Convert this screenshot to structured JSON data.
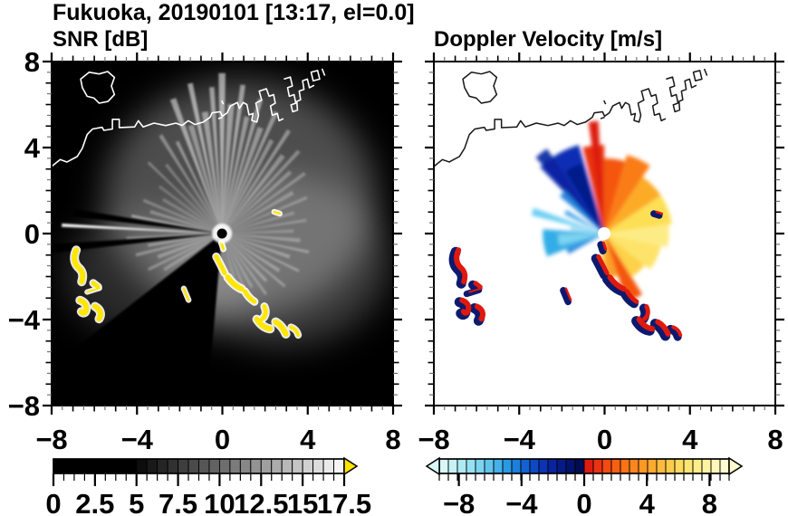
{
  "header": {
    "title": "Fukuoka, 20190101 [13:17, el=0.0]"
  },
  "chart_data": {
    "type": "heatmap",
    "subtype": "radar-ppi-pair",
    "site": "Fukuoka",
    "date": "20190101",
    "time": "13:17",
    "elevation": "0.0",
    "panels": [
      {
        "title": "SNR [dB]",
        "variable": "SNR",
        "units": "dB",
        "bg": "#000000",
        "xlim": [
          -8,
          8
        ],
        "ylim": [
          -8,
          8
        ],
        "major_tick_step": 4,
        "minor_tick_step": 0.5,
        "x_ticks": [
          {
            "v": -8,
            "label": "−8"
          },
          {
            "v": -4,
            "label": "−4"
          },
          {
            "v": 0,
            "label": "0"
          },
          {
            "v": 4,
            "label": "4"
          },
          {
            "v": 8,
            "label": "8"
          }
        ],
        "y_ticks": [
          {
            "v": 8,
            "label": "8"
          },
          {
            "v": 4,
            "label": "4"
          },
          {
            "v": 0,
            "label": "0"
          },
          {
            "v": -4,
            "label": "−4"
          },
          {
            "v": -8,
            "label": "−8"
          }
        ],
        "colorbar": {
          "vmin": 0,
          "vmax": 17.5,
          "arrow_right": "#ffe400",
          "ticks": [
            {
              "v": 0,
              "label": "0"
            },
            {
              "v": 2.5,
              "label": "2.5"
            },
            {
              "v": 5,
              "label": "5"
            },
            {
              "v": 7.5,
              "label": "7.5"
            },
            {
              "v": 10,
              "label": "10"
            },
            {
              "v": 12.5,
              "label": "12.5"
            },
            {
              "v": 15,
              "label": "15"
            },
            {
              "v": 17.5,
              "label": "17.5"
            }
          ],
          "cells": [
            "#000000",
            "#000000",
            "#000000",
            "#000000",
            "#000000",
            "#000000",
            "#000000",
            "#000000",
            "#0d0d0d",
            "#191919",
            "#252525",
            "#313131",
            "#3e3e3e",
            "#4a4a4a",
            "#565656",
            "#626262",
            "#6e6e6e",
            "#7b7b7b",
            "#878787",
            "#939393",
            "#9f9f9f",
            "#ababab",
            "#b8b8b8",
            "#c4c4c4",
            "#d0d0d0",
            "#dcdcdc",
            "#e9e9e9",
            "#f5f5f5"
          ]
        }
      },
      {
        "title": "Doppler Velocity [m/s]",
        "variable": "Doppler Velocity",
        "units": "m/s",
        "bg": "#ffffff",
        "xlim": [
          -8,
          8
        ],
        "ylim": [
          -8,
          8
        ],
        "major_tick_step": 4,
        "minor_tick_step": 0.5,
        "x_ticks": [
          {
            "v": -8,
            "label": "−8"
          },
          {
            "v": -4,
            "label": "−4"
          },
          {
            "v": 0,
            "label": "0"
          },
          {
            "v": 4,
            "label": "4"
          },
          {
            "v": 8,
            "label": "8"
          }
        ],
        "y_ticks": [],
        "colorbar": {
          "vmin": -9.25,
          "vmax": 9.25,
          "arrow_left": "#d9f7f7",
          "arrow_right": "#fdfbce",
          "ticks": [
            {
              "v": -8,
              "label": "−8"
            },
            {
              "v": -4,
              "label": "−4"
            },
            {
              "v": 0,
              "label": "0"
            },
            {
              "v": 4,
              "label": "4"
            },
            {
              "v": 8,
              "label": "8"
            }
          ],
          "cells": [
            "#d9f7f7",
            "#c4f2f5",
            "#aeeaf4",
            "#96e0f2",
            "#7dd4f0",
            "#62c4ee",
            "#45b0ea",
            "#2a99e4",
            "#1b7fdb",
            "#1263d1",
            "#0d49c4",
            "#0a34b4",
            "#07249e",
            "#051a86",
            "#03126b",
            "#020c52",
            "#dd1c10",
            "#e93312",
            "#f24a12",
            "#f75f13",
            "#fa7315",
            "#fc861b",
            "#fd9824",
            "#fdaa2f",
            "#fdbb3c",
            "#fdcb4c",
            "#fdd95e",
            "#fde573",
            "#fdee8a",
            "#fdf4a1",
            "#fdf8b8",
            "#fdfbce"
          ]
        }
      }
    ],
    "render": {
      "center": [
        0.499,
        0.5
      ],
      "coastline": "M 0,.305 L .025,.285 L .045,.292 L .075,.276 L .09,.252 L .104,.212 L .12,.196 L .148,.191 L .153,.2 L .178,.196 L .178,.168 L .198,.168 L .198,.192 L .243,.19 L .254,.172 L .268,.19 L .3,.179 L .334,.186 L .364,.179 L .382,.186 L .4,.172 L .42,.183 L .444,.176 L .464,.162 L .47,.149 L .494,.146 L .5,.159 L .514,.149 L .524,.129 L .544,.119 L .55,.136 L .561,.119 L .572,.125 L .578,.155 L .59,.151 L .586,.171 L .601,.176 L .606,.156 L .598,.121 L .615,.112 L .608,.086 L .629,.079 L .637,.101 L .65,.096 L .655,.121 L .641,.129 L .646,.156 L .661,.151 L .666,.172 L .679,.166 M .68,.051 L .699,.045 L .705,.071 L .691,.076 L .696,.101 L .71,.096 L .715,.121 L .701,.126 L .706,.146 L .72,.141 L .718,.116 L .729,.111 L .725,.086 L .739,.081 L .735,.056 L .749,.051 L .755,.076 L .769,.069 M .76,.031 L .779,.026 L .785,.051 L .766,.056 Z M .792,.021 L .8,.041 M .085,.051 L .11,.031 L .139,.036 L .164,.029 L .184,.046 L .175,.071 L .184,.096 L .165,.116 L .139,.121 L .124,.106 L .104,.101 L .09,.076 Z M .498,.113 L .503,.124 M .488,.166 L .5,.162",
      "clutter": [
        {
          "d": "M .072,.548 C .06,.575 .07,.592 .082,.602 C .094,.615 .092,.628 .088,.64",
          "w": 6
        },
        {
          "d": "M .122,.644 L .136,.655",
          "w": 5
        },
        {
          "d": "M .104,.67 L .14,.659",
          "w": 2
        },
        {
          "d": "M .083,.694 C .097,.699 .104,.71 .101,.722 C .099,.732 .091,.733 .087,.727",
          "w": 6
        },
        {
          "d": "M .127,.712 C .142,.72 .148,.733 .139,.748",
          "w": 6
        },
        {
          "d": "M .482,.567 C .494,.589 .5,.601 .507,.615",
          "w": 5
        },
        {
          "d": "M .516,.627 C .529,.646 .543,.655 .556,.661",
          "w": 6
        },
        {
          "d": "M .566,.668 C .574,.682 .584,.692 .594,.698",
          "w": 5
        },
        {
          "d": "M .623,.712 C .63,.727 .627,.74 .617,.748",
          "w": 5
        },
        {
          "d": "M .601,.749 C .612,.766 .626,.775 .64,.777",
          "w": 6
        },
        {
          "d": "M .656,.757 C .669,.764 .679,.776 .686,.792",
          "w": 6
        },
        {
          "d": "M .701,.772 C .712,.776 .719,.784 .722,.795",
          "w": 4
        },
        {
          "d": "M .387,.66 L .401,.693",
          "w": 2.5
        },
        {
          "d": "M .497,.527 L .503,.545",
          "w": 3
        },
        {
          "d": "M .652,.437 L .668,.442",
          "w": 2.5
        }
      ],
      "snr": {
        "clutter_color": "#ffe600",
        "clutter_halo": "#ffffff",
        "haze": [
          [
            20,
            -40,
            150,
            130,
            0.3
          ],
          [
            65,
            30,
            120,
            95,
            0.22
          ],
          [
            -70,
            45,
            105,
            75,
            0.16
          ]
        ],
        "dark_wedges": [
          [
            95,
            142,
            0.55
          ],
          [
            173.5,
            176.5,
            0.5
          ],
          [
            186.5,
            189.5,
            0.44
          ]
        ],
        "streaks": [
          [
            250,
            0.42,
            2.5,
            0.5
          ],
          [
            254,
            0.33,
            3,
            0.4
          ],
          [
            258,
            0.45,
            2,
            0.55
          ],
          [
            262,
            0.36,
            3,
            0.45
          ],
          [
            266,
            0.43,
            2,
            0.5
          ],
          [
            270,
            0.47,
            2.5,
            0.55
          ],
          [
            274,
            0.38,
            3,
            0.45
          ],
          [
            278,
            0.44,
            2,
            0.5
          ],
          [
            282,
            0.35,
            2.5,
            0.42
          ],
          [
            286,
            0.41,
            2,
            0.45
          ],
          [
            290,
            0.33,
            3,
            0.4
          ],
          [
            294,
            0.39,
            2,
            0.42
          ],
          [
            298,
            0.31,
            2.5,
            0.36
          ],
          [
            303,
            0.36,
            2,
            0.38
          ],
          [
            308,
            0.29,
            3,
            0.34
          ],
          [
            313,
            0.33,
            2,
            0.32
          ],
          [
            318,
            0.27,
            2.5,
            0.3
          ],
          [
            324,
            0.3,
            2,
            0.28
          ],
          [
            330,
            0.24,
            3,
            0.26
          ],
          [
            337,
            0.27,
            2,
            0.25
          ],
          [
            344,
            0.22,
            2.5,
            0.24
          ],
          [
            351,
            0.25,
            2,
            0.24
          ],
          [
            358,
            0.21,
            2.5,
            0.24
          ],
          [
            5,
            0.23,
            3,
            0.27
          ],
          [
            12,
            0.26,
            2,
            0.3
          ],
          [
            19,
            0.21,
            3,
            0.3
          ],
          [
            26,
            0.25,
            2,
            0.3
          ],
          [
            33,
            0.2,
            3,
            0.3
          ],
          [
            40,
            0.24,
            2,
            0.3
          ],
          [
            47,
            0.19,
            3,
            0.3
          ],
          [
            54,
            0.22,
            2,
            0.3
          ],
          [
            61,
            0.18,
            2.5,
            0.27
          ],
          [
            68,
            0.21,
            2,
            0.25
          ],
          [
            75,
            0.16,
            2.5,
            0.22
          ],
          [
            148,
            0.2,
            3,
            0.25
          ],
          [
            154,
            0.24,
            2,
            0.3
          ],
          [
            160,
            0.2,
            3,
            0.3
          ],
          [
            166,
            0.26,
            2,
            0.32
          ],
          [
            171,
            0.22,
            2.5,
            0.3
          ],
          [
            177,
            0.28,
            2,
            0.3
          ],
          [
            183,
            0.47,
            1.2,
            0.95
          ],
          [
            191,
            0.27,
            2,
            0.4
          ],
          [
            197,
            0.22,
            2.5,
            0.3
          ],
          [
            203,
            0.25,
            2,
            0.28
          ],
          [
            210,
            0.2,
            2.5,
            0.25
          ],
          [
            217,
            0.23,
            2,
            0.24
          ],
          [
            224,
            0.3,
            1.5,
            0.3
          ],
          [
            231,
            0.26,
            2,
            0.28
          ],
          [
            238,
            0.34,
            2,
            0.35
          ],
          [
            244,
            0.3,
            2,
            0.4
          ]
        ]
      },
      "vel": {
        "clutter_color": "#e0190e",
        "clutter_under": "#0b1a6e",
        "wedges": [
          [
            226,
            254,
            0.27,
            "#0a2fb4",
            1
          ],
          [
            238,
            252,
            0.215,
            "#041a8a",
            1
          ],
          [
            228,
            236,
            0.3,
            "#07249e",
            0.9
          ],
          [
            220,
            228,
            0.17,
            "#1e7fdb",
            0.95
          ],
          [
            206,
            212,
            0.13,
            "#2a99e4",
            0.9
          ],
          [
            194,
            200,
            0.22,
            "#55c8f0",
            0.85
          ],
          [
            186,
            192,
            0.1,
            "#7dd4f0",
            0.9
          ],
          [
            158,
            184,
            0.18,
            "#29a9e6",
            0.95
          ],
          [
            165,
            179,
            0.135,
            "#7dd4f0",
            1
          ],
          [
            150,
            158,
            0.12,
            "#1e7fdb",
            0.9
          ],
          [
            256,
            270,
            0.26,
            "#e8300f",
            1
          ],
          [
            262,
            267,
            0.33,
            "#dd1c10",
            1
          ],
          [
            270,
            286,
            0.22,
            "#f4560e",
            1
          ],
          [
            286,
            304,
            0.24,
            "#fa7c15",
            1
          ],
          [
            304,
            326,
            0.2,
            "#fcab28",
            1
          ],
          [
            326,
            352,
            0.2,
            "#fddf55",
            1
          ],
          [
            352,
            372,
            0.19,
            "#fdec85",
            1
          ],
          [
            12,
            38,
            0.17,
            "#fde36a",
            1
          ],
          [
            38,
            58,
            0.15,
            "#fdd149",
            1
          ],
          [
            58,
            72,
            0.21,
            "#f4560e",
            1
          ],
          [
            72,
            88,
            0.13,
            "#fa9a20",
            0.95
          ],
          [
            88,
            98,
            0.1,
            "#fdc53c",
            0.9
          ]
        ]
      }
    }
  }
}
